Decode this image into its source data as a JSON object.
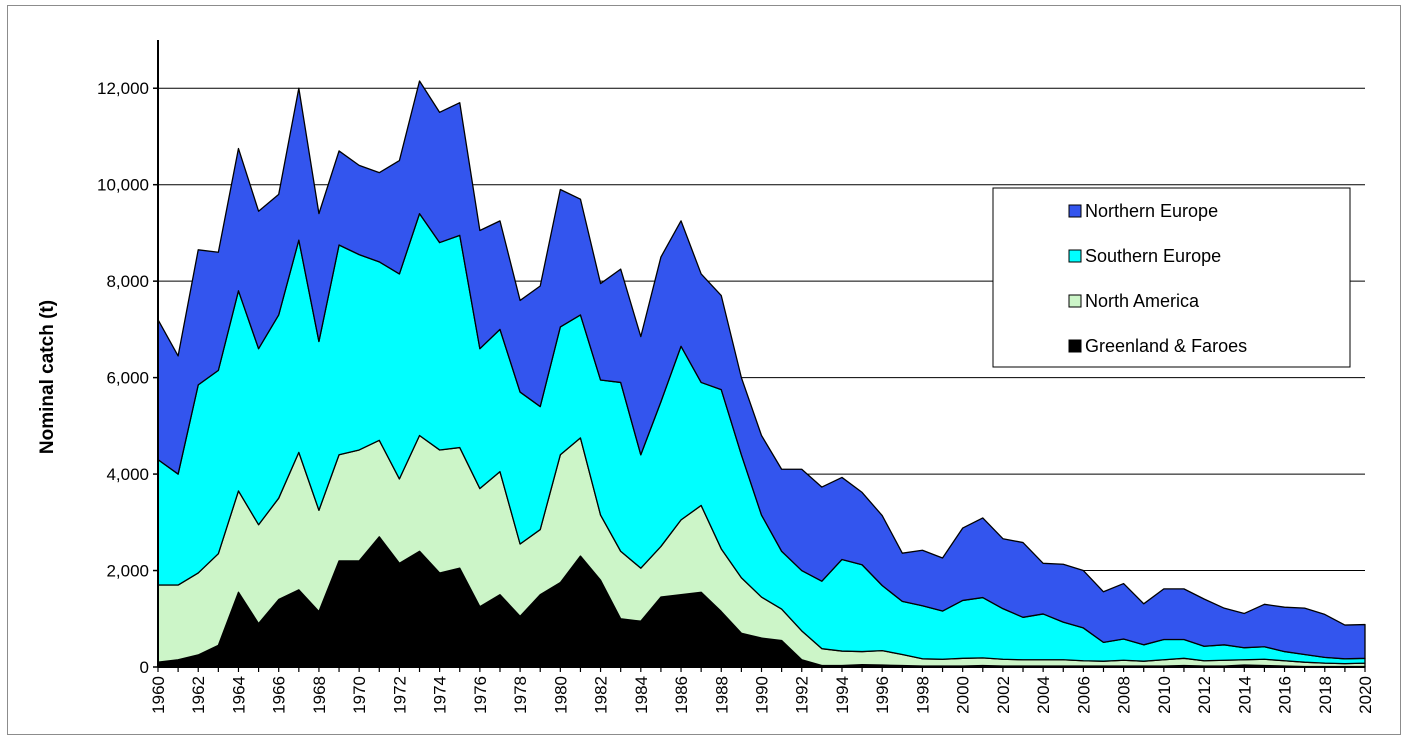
{
  "chart_data": {
    "type": "area",
    "stacked": true,
    "title": "",
    "xlabel": "",
    "ylabel": "Nominal catch (t)",
    "ylim": [
      0,
      13000
    ],
    "yticks": [
      0,
      2000,
      4000,
      6000,
      8000,
      10000,
      12000
    ],
    "ytick_labels": [
      "0",
      "2,000",
      "4,000",
      "6,000",
      "8,000",
      "10,000",
      "12,000"
    ],
    "xlim": [
      1960,
      2020
    ],
    "xtick_labels": [
      "1960",
      "1962",
      "1964",
      "1966",
      "1968",
      "1970",
      "1972",
      "1974",
      "1976",
      "1978",
      "1980",
      "1982",
      "1984",
      "1986",
      "1988",
      "1990",
      "1992",
      "1994",
      "1996",
      "1998",
      "2000",
      "2002",
      "2004",
      "2006",
      "2008",
      "2010",
      "2012",
      "2014",
      "2016",
      "2018",
      "2020"
    ],
    "grid": "horizontal",
    "legend_position": "right",
    "x": [
      1960,
      1961,
      1962,
      1963,
      1964,
      1965,
      1966,
      1967,
      1968,
      1969,
      1970,
      1971,
      1972,
      1973,
      1974,
      1975,
      1976,
      1977,
      1978,
      1979,
      1980,
      1981,
      1982,
      1983,
      1984,
      1985,
      1986,
      1987,
      1988,
      1989,
      1990,
      1991,
      1992,
      1993,
      1994,
      1995,
      1996,
      1997,
      1998,
      1999,
      2000,
      2001,
      2002,
      2003,
      2004,
      2005,
      2006,
      2007,
      2008,
      2009,
      2010,
      2011,
      2012,
      2013,
      2014,
      2015,
      2016,
      2017,
      2018,
      2019,
      2020
    ],
    "series": [
      {
        "name": "Greenland & Faroes",
        "color": "#000000",
        "values": [
          100,
          150,
          250,
          450,
          1550,
          900,
          1400,
          1600,
          1150,
          2200,
          2200,
          2700,
          2150,
          2400,
          1950,
          2050,
          1250,
          1500,
          1050,
          1500,
          1750,
          2300,
          1800,
          1000,
          950,
          1450,
          1500,
          1550,
          1150,
          700,
          600,
          550,
          150,
          30,
          30,
          50,
          40,
          30,
          20,
          20,
          20,
          30,
          20,
          20,
          20,
          20,
          20,
          20,
          20,
          20,
          20,
          30,
          20,
          20,
          40,
          30,
          20,
          10,
          10,
          10,
          10
        ]
      },
      {
        "name": "North America",
        "color": "#ccf5c8",
        "values": [
          1600,
          1550,
          1700,
          1900,
          2100,
          2050,
          2100,
          2850,
          2100,
          2200,
          2300,
          2000,
          1750,
          2400,
          2550,
          2500,
          2450,
          2550,
          1500,
          1350,
          2650,
          2450,
          1350,
          1400,
          1100,
          1050,
          1550,
          1800,
          1300,
          1150,
          850,
          650,
          600,
          350,
          300,
          270,
          300,
          230,
          150,
          140,
          160,
          160,
          140,
          130,
          130,
          130,
          110,
          100,
          120,
          100,
          130,
          150,
          110,
          120,
          110,
          130,
          110,
          90,
          70,
          60,
          70
        ]
      },
      {
        "name": "Southern Europe",
        "color": "#00ffff",
        "values": [
          2600,
          2300,
          3900,
          3800,
          4150,
          3650,
          3800,
          4400,
          3500,
          4350,
          4050,
          3700,
          4250,
          4600,
          4300,
          4400,
          2900,
          2950,
          3150,
          2550,
          2650,
          2550,
          2800,
          3500,
          2350,
          3000,
          3600,
          2550,
          3300,
          2550,
          1700,
          1200,
          1250,
          1400,
          1900,
          1800,
          1350,
          1100,
          1100,
          1000,
          1200,
          1250,
          1050,
          880,
          950,
          780,
          680,
          390,
          440,
          340,
          420,
          390,
          300,
          320,
          250,
          260,
          190,
          160,
          120,
          100,
          100
        ]
      },
      {
        "name": "Northern Europe",
        "color": "#3355ee",
        "values": [
          2900,
          2450,
          2800,
          2450,
          2950,
          2850,
          2500,
          3150,
          2650,
          1950,
          1850,
          1850,
          2350,
          2750,
          2700,
          2750,
          2450,
          2250,
          1900,
          2500,
          2850,
          2400,
          2000,
          2350,
          2450,
          3000,
          2600,
          2250,
          1950,
          1600,
          1650,
          1700,
          2100,
          1950,
          1700,
          1500,
          1450,
          1000,
          1150,
          1100,
          1500,
          1650,
          1450,
          1550,
          1050,
          1200,
          1190,
          1050,
          1150,
          850,
          1050,
          1050,
          980,
          760,
          710,
          880,
          920,
          960,
          890,
          700,
          700
        ]
      }
    ]
  }
}
